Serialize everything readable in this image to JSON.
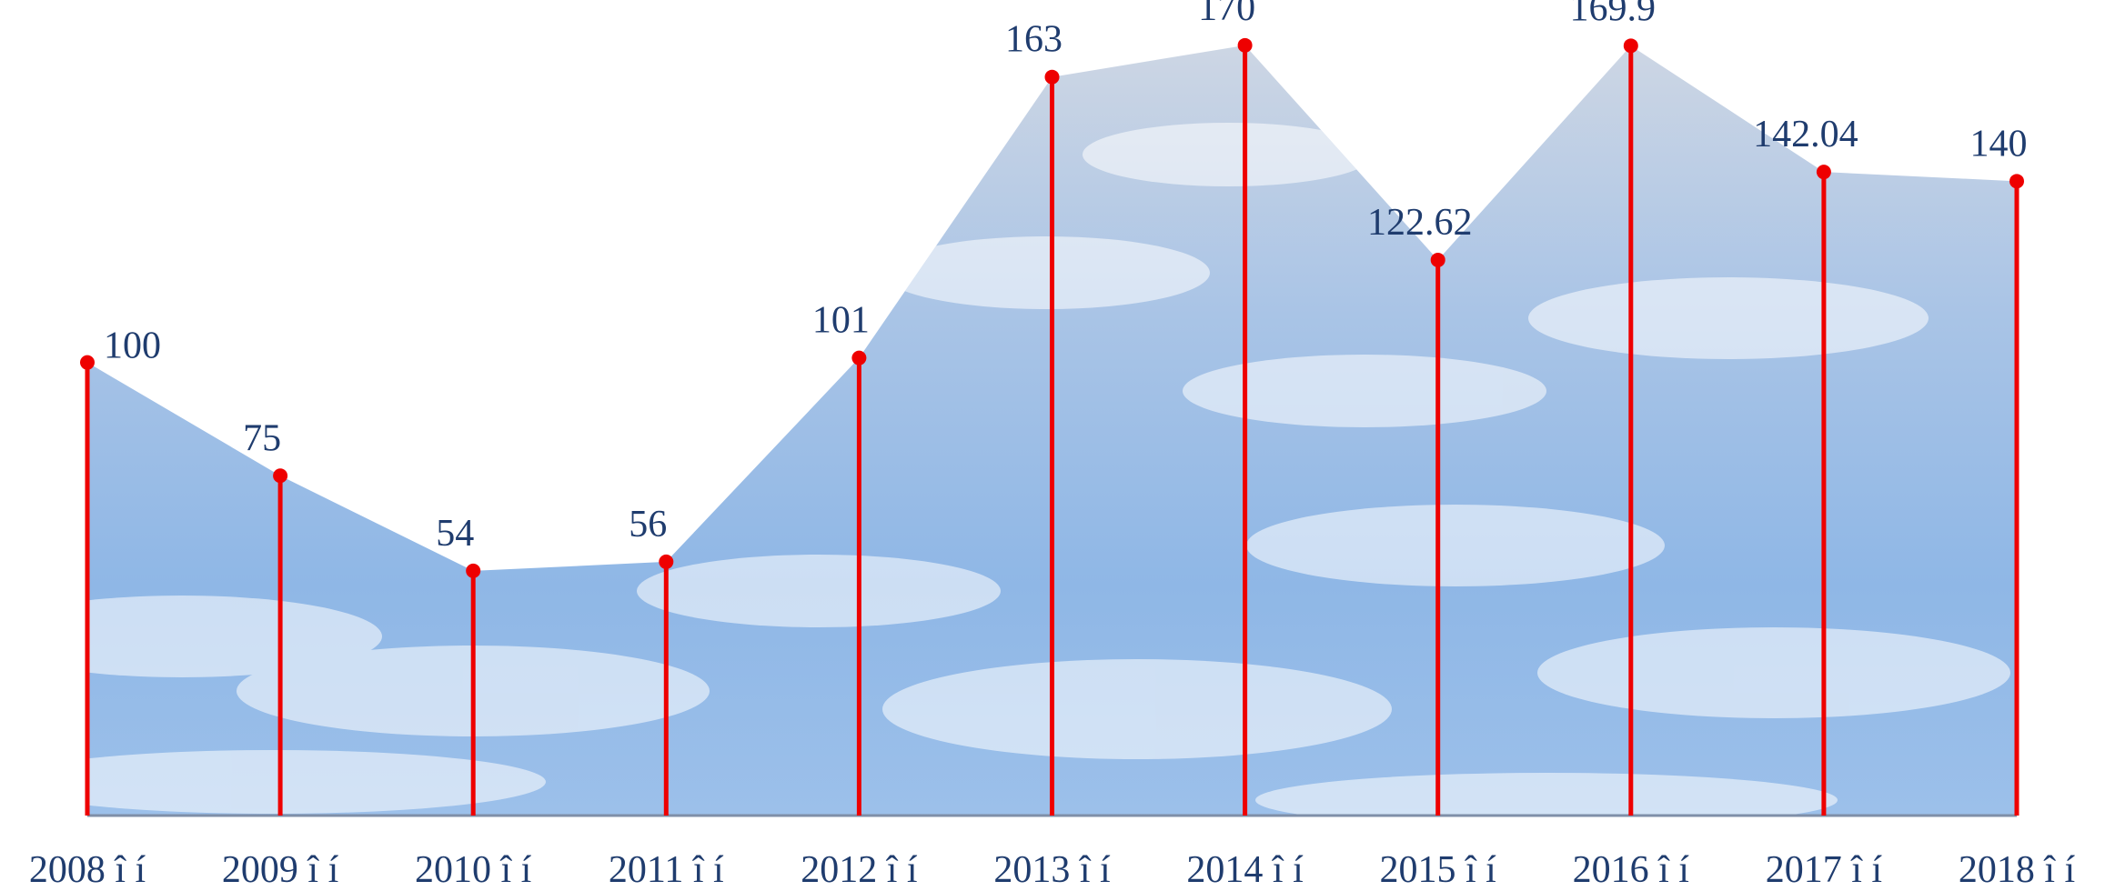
{
  "chart_data": {
    "type": "area",
    "categories": [
      "2008 î í",
      "2009 î í",
      "2010 î í",
      "2011 î í",
      "2012 î í",
      "2013 î í",
      "2014 î í",
      "2015 î í",
      "2016 î í",
      "2017 î í",
      "2018 î í"
    ],
    "values": [
      100,
      75,
      54,
      56,
      101,
      163,
      170,
      122.62,
      169.9,
      142.04,
      140
    ],
    "color": "#ee0000",
    "ylim": [
      0,
      180
    ]
  }
}
